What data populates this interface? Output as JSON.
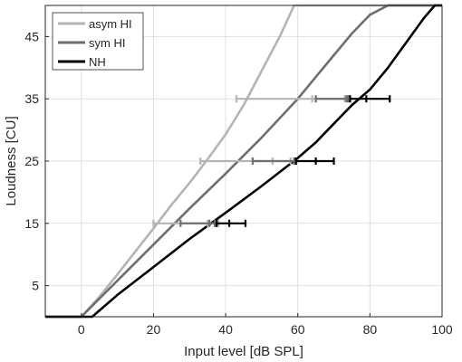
{
  "chart_data": {
    "type": "line",
    "xlabel": "Input level [dB SPL]",
    "ylabel": "Loudness [CU]",
    "xlim": [
      -10,
      100
    ],
    "ylim": [
      0,
      50
    ],
    "xticks": [
      "0",
      "20",
      "40",
      "60",
      "80",
      "100"
    ],
    "yticks": [
      "5",
      "15",
      "25",
      "35",
      "45"
    ],
    "grid": true,
    "legend": "top-left",
    "series": [
      {
        "name": "asym HI",
        "color": "#b4b4b4",
        "x": [
          -10,
          0,
          5,
          10,
          15,
          20,
          25,
          30,
          35,
          40,
          45,
          50,
          55,
          59,
          100
        ],
        "y": [
          0,
          0,
          3.2,
          6.8,
          10.5,
          14.2,
          18,
          21.5,
          25.3,
          29.3,
          34,
          39.5,
          45,
          50,
          50
        ],
        "errorbars": [
          {
            "y": 15,
            "low": 20,
            "mid": 35,
            "high": 38
          },
          {
            "y": 25,
            "low": 33,
            "mid": 53,
            "high": 58
          },
          {
            "y": 35,
            "low": 43,
            "mid": 64,
            "high": 73
          }
        ]
      },
      {
        "name": "sym HI",
        "color": "#6e6e6e",
        "x": [
          -10,
          0,
          10,
          20,
          30,
          40,
          50,
          60,
          65,
          70,
          75,
          80,
          85,
          87,
          100
        ],
        "y": [
          0,
          0,
          5.8,
          11.6,
          17.4,
          23,
          28.8,
          35,
          38.5,
          42,
          45.5,
          48.5,
          50,
          50,
          50
        ],
        "errorbars": [
          {
            "y": 15,
            "low": 27.5,
            "mid": 35.5,
            "high": 37
          },
          {
            "y": 25,
            "low": 47.5,
            "mid": 59,
            "high": 59.5
          },
          {
            "y": 35,
            "low": 65,
            "mid": 73.5,
            "high": 74
          }
        ]
      },
      {
        "name": "NH",
        "color": "#000000",
        "x": [
          -10,
          3,
          10,
          20,
          30,
          40,
          50,
          60,
          65,
          70,
          75,
          80,
          85,
          90,
          95,
          98,
          100
        ],
        "y": [
          0,
          0,
          3.5,
          8,
          12.5,
          16.7,
          21,
          25.5,
          28,
          31,
          34,
          36.5,
          40,
          44,
          48,
          50,
          50
        ],
        "errorbars": [
          {
            "y": 15,
            "low": 37.5,
            "mid": 41,
            "high": 45.5
          },
          {
            "y": 25,
            "low": 59.5,
            "mid": 65,
            "high": 70
          },
          {
            "y": 35,
            "low": 74.5,
            "mid": 79,
            "high": 85.5
          }
        ]
      }
    ]
  }
}
